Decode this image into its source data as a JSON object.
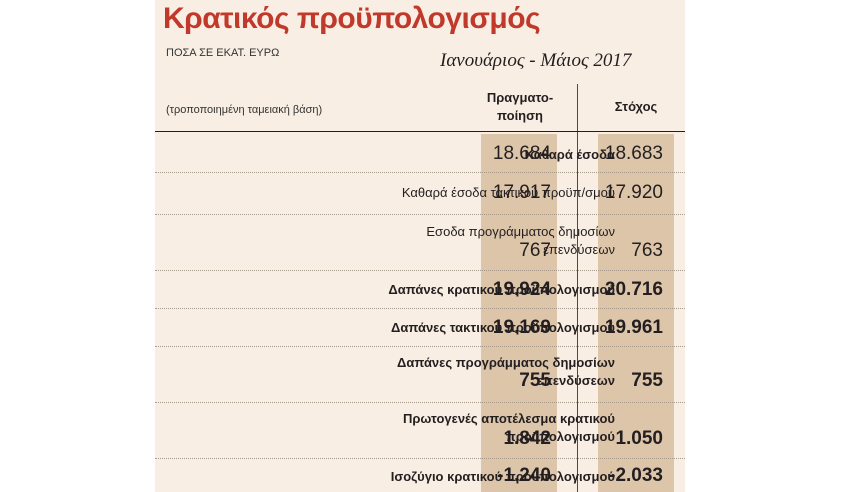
{
  "header": {
    "title": "Κρατικός προϋπολογισμός",
    "units": "ΠΟΣΑ ΣΕ ΕΚΑΤ. ΕΥΡΩ",
    "period": "Ιανουάριος - Μάιος 2017",
    "basis": "(τροποποιημένη ταμειακή βάση)"
  },
  "columns": {
    "actual": "Πραγματο-ποίηση",
    "actual_line1": "Πραγματο-",
    "actual_line2": "ποίηση",
    "target": "Στόχος"
  },
  "rows": [
    {
      "label": "Καθαρά έσοδα",
      "actual": "18.684",
      "target": "18.683",
      "bold": true
    },
    {
      "label": "Καθαρά έσοδα τακτικού προϋπ/σμού",
      "actual": "17.917",
      "target": "17.920",
      "bold": false
    },
    {
      "label_line1": "Εσοδα προγράμματος δημοσίων",
      "label_line2": "επενδύσεων",
      "actual": "767",
      "target": "763",
      "bold": false
    },
    {
      "label": "Δαπάνες κρατικού προϋπολογισμού",
      "actual": "19.924",
      "target": "20.716",
      "bold": true
    },
    {
      "label": "Δαπάνες τακτικού προϋπολογισμού",
      "actual": "19.169",
      "target": "19.961",
      "bold": true
    },
    {
      "label_line1": "Δαπάνες προγράμματος δημοσίων",
      "label_line2": "επενδύσεων",
      "actual": "755",
      "target": "755",
      "bold": true
    },
    {
      "label_line1": "Πρωτογενές αποτέλεσμα κρατικού",
      "label_line2": "προϋπολογισμού",
      "actual": "1.842",
      "target": "1.050",
      "bold": true
    },
    {
      "label": "Ισοζύγιο κρατικού προϋπολογισμού",
      "actual": "-1.240",
      "target": "-2.033",
      "bold": true
    }
  ],
  "colors": {
    "title": "#c0392b",
    "panel": "#f9eee3",
    "column_fill": "#ddc5aa"
  }
}
